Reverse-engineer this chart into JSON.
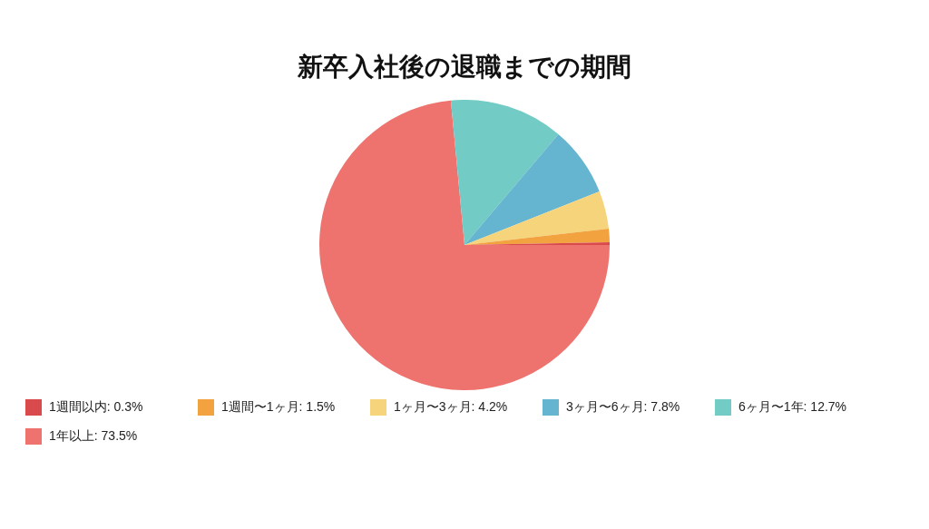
{
  "chart_data": {
    "type": "pie",
    "title": "新卒入社後の退職までの期間",
    "categories": [
      "1週間以内: 0.3%",
      "1週間〜1ヶ月: 1.5%",
      "1ヶ月〜3ヶ月: 4.2%",
      "3ヶ月〜6ヶ月: 7.8%",
      "6ヶ月〜1年: 12.7%",
      "1年以上: 73.5%"
    ],
    "values": [
      0.3,
      1.5,
      4.2,
      7.8,
      12.7,
      73.5
    ],
    "colors": [
      "#d94a4d",
      "#f2a23f",
      "#f5d47c",
      "#66b5d0",
      "#72cbc5",
      "#ee736f"
    ],
    "legend": "bottom"
  }
}
